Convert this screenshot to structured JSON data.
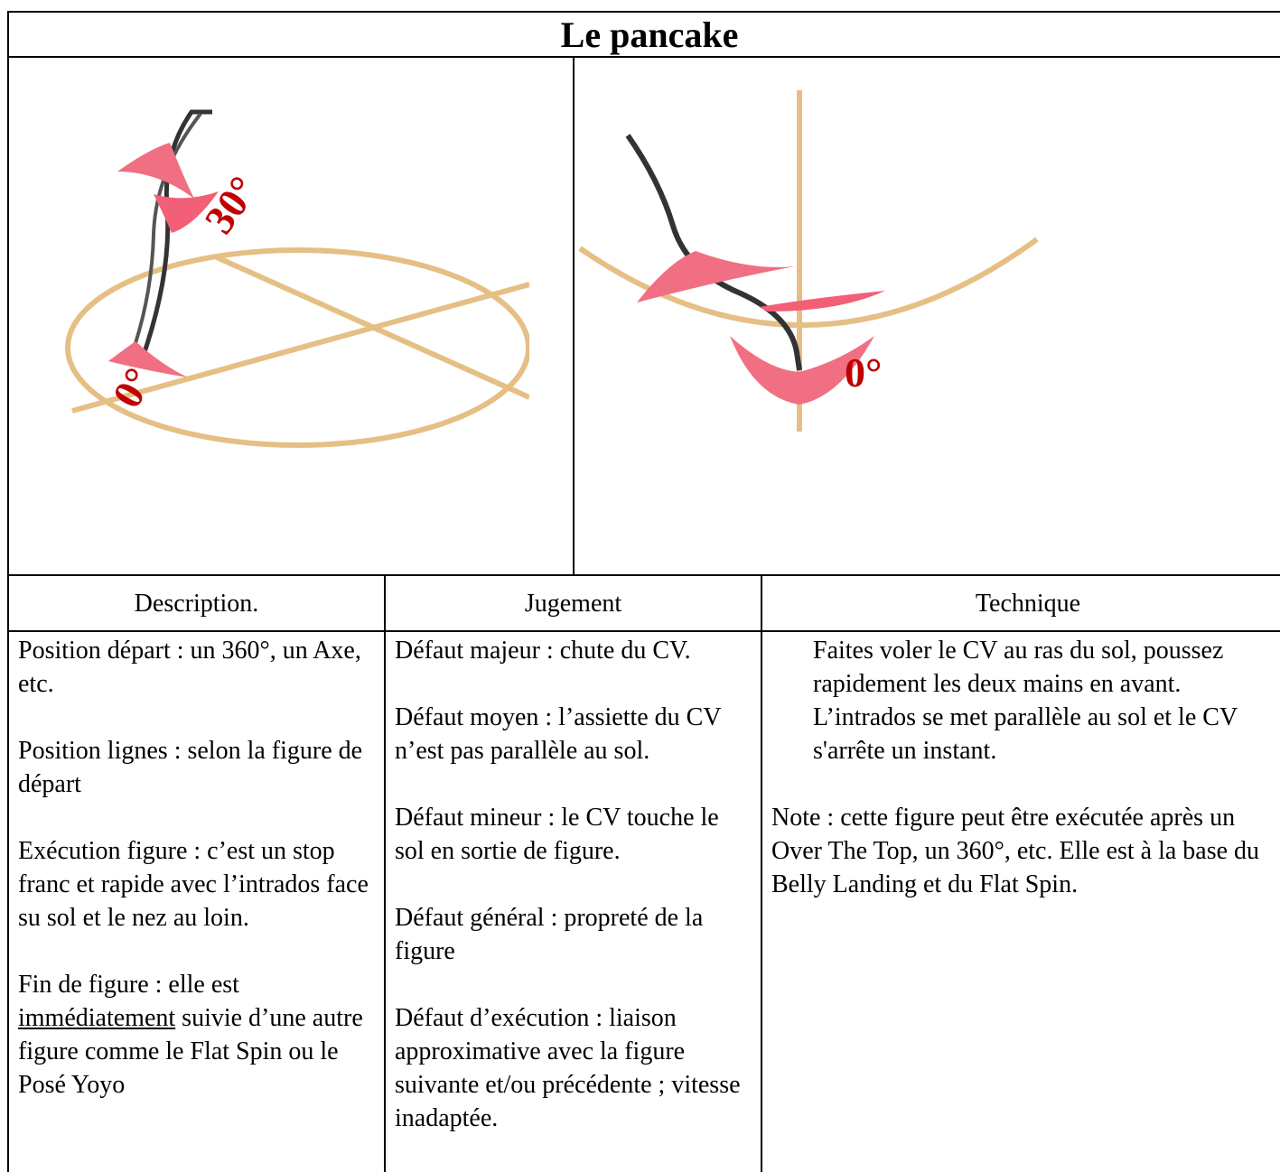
{
  "title": "Le pancake",
  "figures": [
    {
      "labels": [
        "30°",
        "0°"
      ]
    },
    {
      "labels": [
        "0°"
      ]
    }
  ],
  "table": {
    "headers": [
      "Description.",
      "Jugement",
      "Technique"
    ],
    "description": [
      "Position départ : un 360°, un Axe, etc.",
      "Position lignes : selon la figure de départ",
      "Exécution figure : c’est un stop franc et rapide avec l’intrados face su sol et le nez au loin.",
      {
        "before": "Fin de figure : elle est ",
        "underlined": "immédiatement",
        "after": " suivie d’une autre figure comme le Flat Spin ou le Posé Yoyo"
      }
    ],
    "jugement": [
      "Défaut majeur : chute du CV.",
      "Défaut moyen : l’assiette du CV n’est pas parallèle au sol.",
      "Défaut mineur : le CV touche le sol en sortie de figure.",
      "Défaut général : propreté de la figure",
      "Défaut d’exécution : liaison approximative avec la figure suivante et/ou précédente ; vitesse inadaptée."
    ],
    "technique": {
      "steps": [
        "Faites voler le CV au ras du sol, poussez rapidement les deux mains en avant.",
        "L’intrados se met parallèle au sol et le CV s'arrête un instant."
      ],
      "note": "Note : cette figure peut être exécutée après un Over The Top, un 360°, etc. Elle est à la base du Belly Landing et du Flat Spin."
    }
  }
}
